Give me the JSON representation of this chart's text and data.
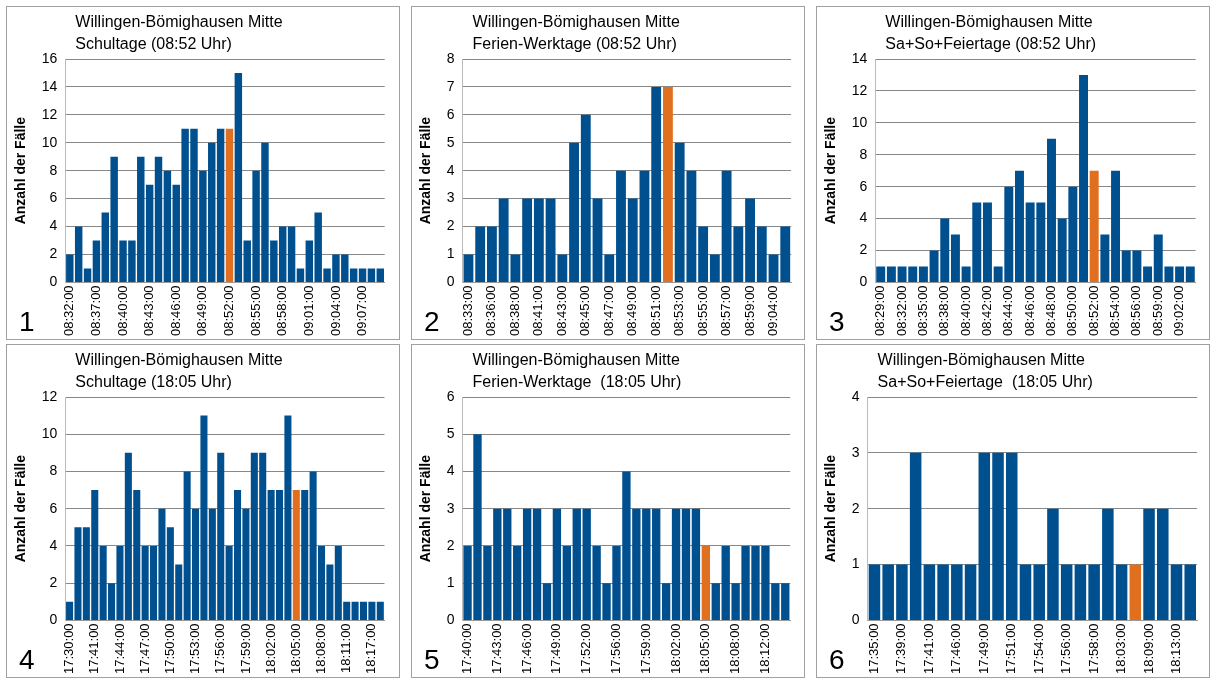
{
  "chart_data": [
    {
      "type": "bar",
      "title": "Willingen-Bömighausen Mitte",
      "subtitle": "Schultage (08:52 Uhr)",
      "ylabel": "Anzahl der Fälle",
      "annotations": [
        "1"
      ],
      "grid": "y",
      "ylim": [
        0,
        16
      ],
      "yticks": [
        0,
        2,
        4,
        6,
        8,
        10,
        12,
        14,
        16
      ],
      "categories": [
        "08:32:00",
        null,
        null,
        "08:37:00",
        null,
        null,
        "08:40:00",
        null,
        null,
        "08:43:00",
        null,
        null,
        "08:46:00",
        null,
        null,
        "08:49:00",
        null,
        null,
        "08:52:00",
        null,
        null,
        "08:55:00",
        null,
        null,
        "08:58:00",
        null,
        null,
        "09:01:00",
        null,
        null,
        "09:04:00",
        null,
        null,
        "09:07:00",
        null,
        null
      ],
      "values": [
        2,
        4,
        1,
        3,
        5,
        9,
        3,
        3,
        9,
        7,
        9,
        8,
        7,
        11,
        11,
        8,
        10,
        11,
        11,
        15,
        3,
        8,
        10,
        3,
        4,
        4,
        1,
        3,
        5,
        1,
        2,
        2,
        1,
        1,
        1,
        1
      ],
      "colors": [
        "#00508f",
        "#00508f",
        "#00508f",
        "#00508f",
        "#00508f",
        "#00508f",
        "#00508f",
        "#00508f",
        "#00508f",
        "#00508f",
        "#00508f",
        "#00508f",
        "#00508f",
        "#00508f",
        "#00508f",
        "#00508f",
        "#00508f",
        "#00508f",
        "#e07020",
        "#00508f",
        "#00508f",
        "#00508f",
        "#00508f",
        "#00508f",
        "#00508f",
        "#00508f",
        "#00508f",
        "#00508f",
        "#00508f",
        "#00508f",
        "#00508f",
        "#00508f",
        "#00508f",
        "#00508f",
        "#00508f",
        "#00508f"
      ]
    },
    {
      "type": "bar",
      "title": "Willingen-Bömighausen Mitte",
      "subtitle": "Ferien-Werktage (08:52 Uhr)",
      "ylabel": "Anzahl der Fälle",
      "annotations": [
        "2"
      ],
      "grid": "y",
      "ylim": [
        0,
        8
      ],
      "yticks": [
        0,
        1,
        2,
        3,
        4,
        5,
        6,
        7,
        8
      ],
      "categories": [
        "08:33:00",
        null,
        "08:36:00",
        null,
        "08:38:00",
        null,
        "08:41:00",
        null,
        "08:43:00",
        null,
        "08:45:00",
        null,
        "08:47:00",
        null,
        "08:49:00",
        null,
        "08:51:00",
        null,
        "08:53:00",
        null,
        "08:55:00",
        null,
        "08:57:00",
        null,
        "08:59:00",
        null,
        "09:04:00",
        null
      ],
      "values": [
        1,
        2,
        2,
        3,
        1,
        3,
        3,
        3,
        1,
        5,
        6,
        3,
        1,
        4,
        3,
        4,
        7,
        7,
        5,
        4,
        2,
        1,
        4,
        2,
        3,
        2,
        1,
        2
      ],
      "colors": [
        "#00508f",
        "#00508f",
        "#00508f",
        "#00508f",
        "#00508f",
        "#00508f",
        "#00508f",
        "#00508f",
        "#00508f",
        "#00508f",
        "#00508f",
        "#00508f",
        "#00508f",
        "#00508f",
        "#00508f",
        "#00508f",
        "#00508f",
        "#e07020",
        "#00508f",
        "#00508f",
        "#00508f",
        "#00508f",
        "#00508f",
        "#00508f",
        "#00508f",
        "#00508f",
        "#00508f",
        "#00508f"
      ]
    },
    {
      "type": "bar",
      "title": "Willingen-Bömighausen Mitte",
      "subtitle": "Sa+So+Feiertage (08:52 Uhr)",
      "ylabel": "Anzahl der Fälle",
      "annotations": [
        "3"
      ],
      "grid": "y",
      "ylim": [
        0,
        14
      ],
      "yticks": [
        0,
        2,
        4,
        6,
        8,
        10,
        12,
        14
      ],
      "categories": [
        "08:29:00",
        null,
        "08:32:00",
        null,
        "08:35:00",
        null,
        "08:38:00",
        null,
        "08:40:00",
        null,
        "08:42:00",
        null,
        "08:44:00",
        null,
        "08:46:00",
        null,
        "08:48:00",
        null,
        "08:50:00",
        null,
        "08:52:00",
        null,
        "08:54:00",
        null,
        "08:56:00",
        null,
        "08:59:00",
        null,
        "09:02:00",
        null
      ],
      "values": [
        1,
        1,
        1,
        1,
        1,
        2,
        4,
        3,
        1,
        5,
        5,
        1,
        6,
        7,
        5,
        5,
        9,
        4,
        6,
        13,
        7,
        3,
        7,
        2,
        2,
        1,
        3,
        1,
        1,
        1
      ],
      "colors": [
        "#00508f",
        "#00508f",
        "#00508f",
        "#00508f",
        "#00508f",
        "#00508f",
        "#00508f",
        "#00508f",
        "#00508f",
        "#00508f",
        "#00508f",
        "#00508f",
        "#00508f",
        "#00508f",
        "#00508f",
        "#00508f",
        "#00508f",
        "#00508f",
        "#00508f",
        "#00508f",
        "#e07020",
        "#00508f",
        "#00508f",
        "#00508f",
        "#00508f",
        "#00508f",
        "#00508f",
        "#00508f",
        "#00508f",
        "#00508f"
      ]
    },
    {
      "type": "bar",
      "title": "Willingen-Bömighausen Mitte",
      "subtitle": "Schultage (18:05 Uhr)",
      "ylabel": "Anzahl der Fälle",
      "annotations": [
        "4"
      ],
      "grid": "y",
      "ylim": [
        0,
        12
      ],
      "yticks": [
        0,
        2,
        4,
        6,
        8,
        10,
        12
      ],
      "categories": [
        "17:30:00",
        null,
        null,
        "17:41:00",
        null,
        null,
        "17:44:00",
        null,
        null,
        "17:47:00",
        null,
        null,
        "17:50:00",
        null,
        null,
        "17:53:00",
        null,
        null,
        "17:56:00",
        null,
        null,
        "17:59:00",
        null,
        null,
        "18:02:00",
        null,
        null,
        "18:05:00",
        null,
        null,
        "18:08:00",
        null,
        null,
        "18:11:00",
        null,
        null,
        "18:17:00",
        null
      ],
      "values": [
        1,
        5,
        5,
        7,
        4,
        2,
        4,
        9,
        7,
        4,
        4,
        6,
        5,
        3,
        8,
        6,
        11,
        6,
        9,
        4,
        7,
        6,
        9,
        9,
        7,
        7,
        11,
        7,
        7,
        8,
        4,
        3,
        4,
        1,
        1,
        1,
        1,
        1
      ],
      "colors": [
        "#00508f",
        "#00508f",
        "#00508f",
        "#00508f",
        "#00508f",
        "#00508f",
        "#00508f",
        "#00508f",
        "#00508f",
        "#00508f",
        "#00508f",
        "#00508f",
        "#00508f",
        "#00508f",
        "#00508f",
        "#00508f",
        "#00508f",
        "#00508f",
        "#00508f",
        "#00508f",
        "#00508f",
        "#00508f",
        "#00508f",
        "#00508f",
        "#00508f",
        "#00508f",
        "#00508f",
        "#e07020",
        "#00508f",
        "#00508f",
        "#00508f",
        "#00508f",
        "#00508f",
        "#00508f",
        "#00508f",
        "#00508f",
        "#00508f",
        "#00508f"
      ]
    },
    {
      "type": "bar",
      "title": "Willingen-Bömighausen Mitte",
      "subtitle": "Ferien-Werktage  (18:05 Uhr)",
      "ylabel": "Anzahl der Fälle",
      "annotations": [
        "5"
      ],
      "grid": "y",
      "ylim": [
        0,
        6
      ],
      "yticks": [
        0,
        1,
        2,
        3,
        4,
        5,
        6
      ],
      "categories": [
        "17:40:00",
        null,
        null,
        "17:43:00",
        null,
        null,
        "17:46:00",
        null,
        null,
        "17:49:00",
        null,
        null,
        "17:52:00",
        null,
        null,
        "17:56:00",
        null,
        null,
        "17:59:00",
        null,
        null,
        "18:02:00",
        null,
        null,
        "18:05:00",
        null,
        null,
        "18:08:00",
        null,
        null,
        "18:12:00",
        null,
        null
      ],
      "values": [
        2,
        5,
        2,
        3,
        3,
        2,
        3,
        3,
        1,
        3,
        2,
        3,
        3,
        2,
        1,
        2,
        4,
        3,
        3,
        3,
        1,
        3,
        3,
        3,
        2,
        1,
        2,
        1,
        2,
        2,
        2,
        1,
        1
      ],
      "colors": [
        "#00508f",
        "#00508f",
        "#00508f",
        "#00508f",
        "#00508f",
        "#00508f",
        "#00508f",
        "#00508f",
        "#00508f",
        "#00508f",
        "#00508f",
        "#00508f",
        "#00508f",
        "#00508f",
        "#00508f",
        "#00508f",
        "#00508f",
        "#00508f",
        "#00508f",
        "#00508f",
        "#00508f",
        "#00508f",
        "#00508f",
        "#00508f",
        "#e07020",
        "#00508f",
        "#00508f",
        "#00508f",
        "#00508f",
        "#00508f",
        "#00508f",
        "#00508f",
        "#00508f"
      ]
    },
    {
      "type": "bar",
      "title": "Willingen-Bömighausen Mitte",
      "subtitle": "Sa+So+Feiertage  (18:05 Uhr)",
      "ylabel": "Anzahl der Fälle",
      "annotations": [
        "6"
      ],
      "grid": "y",
      "ylim": [
        0,
        4
      ],
      "yticks": [
        0,
        1,
        2,
        3,
        4
      ],
      "categories": [
        "17:35:00",
        null,
        "17:39:00",
        null,
        "17:41:00",
        null,
        "17:46:00",
        null,
        "17:49:00",
        null,
        "17:51:00",
        null,
        "17:54:00",
        null,
        "17:56:00",
        null,
        "17:58:00",
        null,
        "18:03:00",
        null,
        "18:09:00",
        null,
        "18:13:00",
        null
      ],
      "values": [
        1,
        1,
        1,
        3,
        1,
        1,
        1,
        1,
        3,
        3,
        3,
        1,
        1,
        2,
        1,
        1,
        1,
        2,
        1,
        1,
        2,
        2,
        1,
        1
      ],
      "colors": [
        "#00508f",
        "#00508f",
        "#00508f",
        "#00508f",
        "#00508f",
        "#00508f",
        "#00508f",
        "#00508f",
        "#00508f",
        "#00508f",
        "#00508f",
        "#00508f",
        "#00508f",
        "#00508f",
        "#00508f",
        "#00508f",
        "#00508f",
        "#00508f",
        "#00508f",
        "#e07020",
        "#00508f",
        "#00508f",
        "#00508f",
        "#00508f"
      ]
    }
  ]
}
